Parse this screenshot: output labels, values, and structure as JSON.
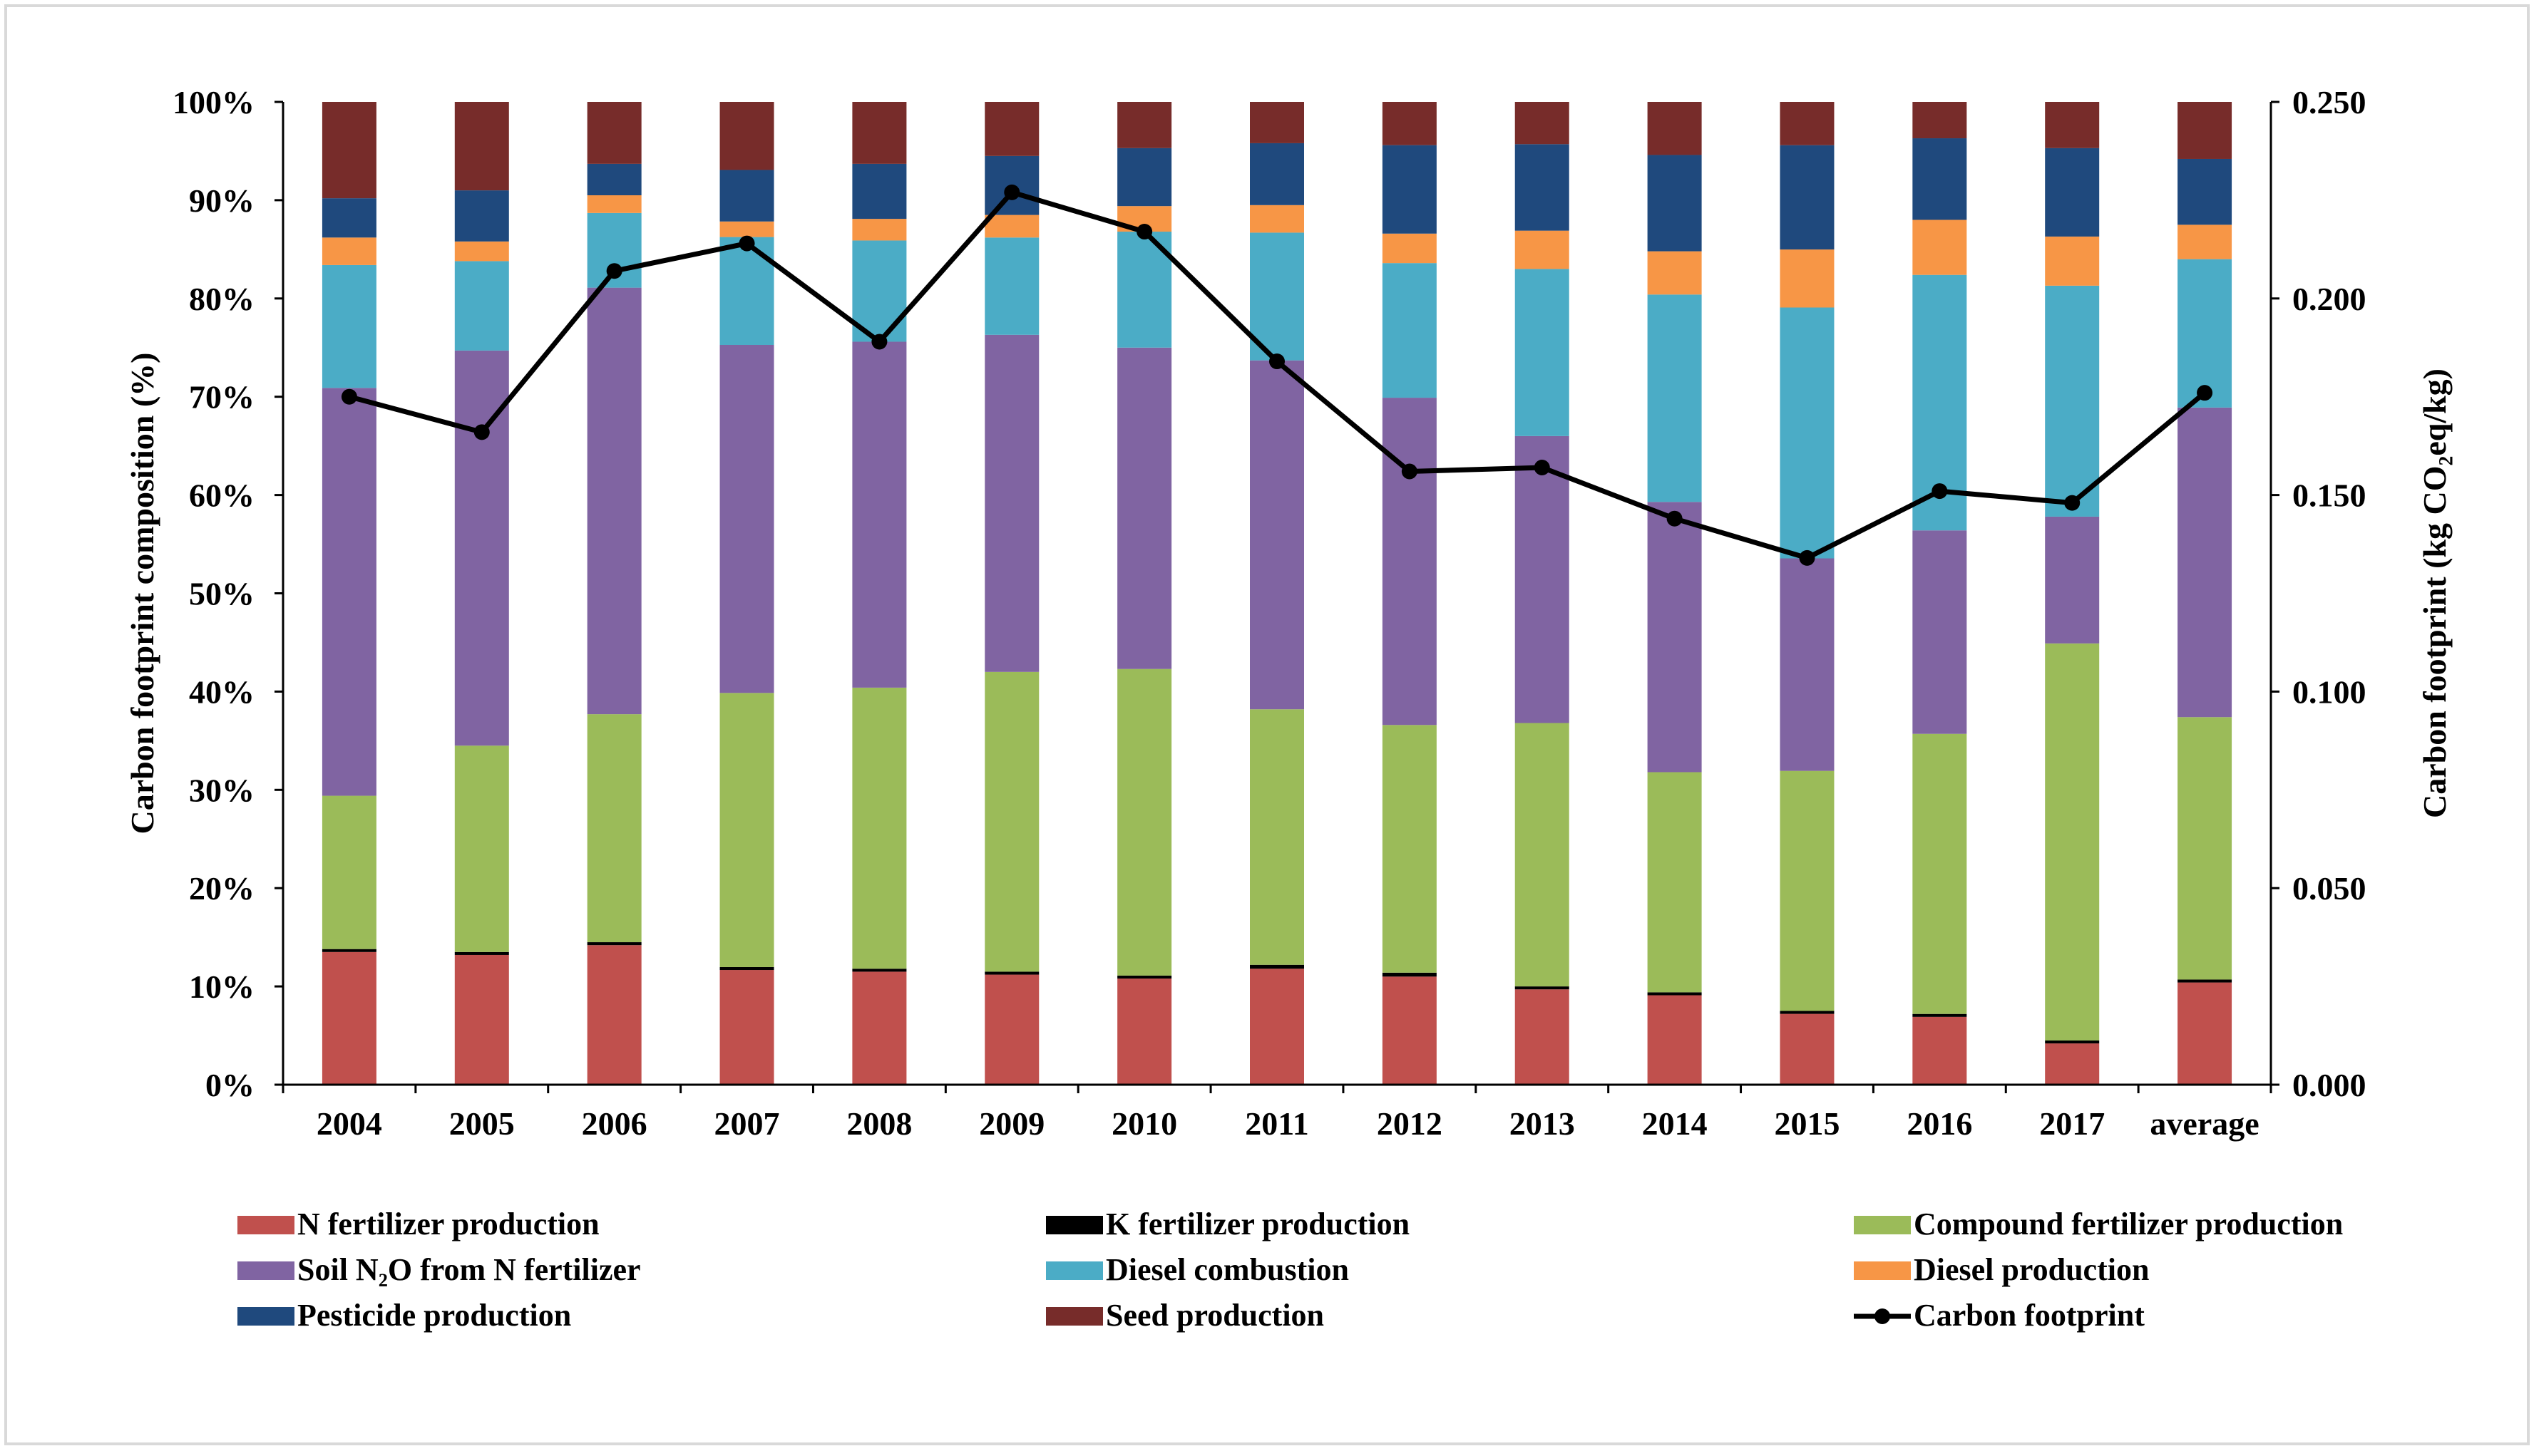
{
  "chart_data": {
    "type": "bar",
    "subtype": "stacked-percent-with-line",
    "categories": [
      "2004",
      "2005",
      "2006",
      "2007",
      "2008",
      "2009",
      "2010",
      "2011",
      "2012",
      "2013",
      "2014",
      "2015",
      "2016",
      "2017",
      "average"
    ],
    "ylabel_left": "Carbon footprint composition (%)",
    "ylabel_right": "Carbon footprint (kg CO₂eq/kg)",
    "ylim_left": [
      0,
      100
    ],
    "ylim_right": [
      0,
      0.25
    ],
    "left_ticks": [
      "0%",
      "10%",
      "20%",
      "30%",
      "40%",
      "50%",
      "60%",
      "70%",
      "80%",
      "90%",
      "100%"
    ],
    "right_ticks": [
      "0.000",
      "0.050",
      "0.100",
      "0.150",
      "0.200",
      "0.250"
    ],
    "grid": false,
    "legend_position": "bottom",
    "series": [
      {
        "name": "N fertilizer production",
        "color": "#C0504D",
        "values": [
          13.5,
          13.2,
          14.2,
          11.8,
          11.5,
          11.2,
          10.8,
          11.8,
          11.0,
          9.7,
          9.1,
          7.2,
          6.9,
          4.2,
          10.4
        ]
      },
      {
        "name": "K fertilizer production",
        "color": "#000000",
        "values": [
          0.3,
          0.3,
          0.3,
          0.3,
          0.3,
          0.3,
          0.3,
          0.4,
          0.4,
          0.3,
          0.3,
          0.3,
          0.3,
          0.3,
          0.3
        ]
      },
      {
        "name": "Compound fertilizer production",
        "color": "#9BBB59",
        "values": [
          15.6,
          21.0,
          23.2,
          28.2,
          28.6,
          30.5,
          31.2,
          26.0,
          25.2,
          26.8,
          22.4,
          24.4,
          28.5,
          40.4,
          26.7
        ]
      },
      {
        "name": "Soil N₂O from  N fertilizer",
        "color": "#8064A2",
        "values": [
          41.5,
          40.2,
          43.4,
          35.8,
          35.2,
          34.3,
          32.7,
          35.5,
          33.3,
          29.2,
          27.5,
          21.6,
          20.7,
          12.9,
          31.5
        ]
      },
      {
        "name": "Diesel combustion",
        "color": "#4BACC6",
        "values": [
          12.5,
          9.1,
          7.6,
          11.1,
          10.3,
          9.9,
          11.8,
          13.0,
          13.7,
          17.0,
          21.1,
          25.5,
          26.0,
          23.5,
          15.1
        ]
      },
      {
        "name": "Diesel production",
        "color": "#F79646",
        "values": [
          2.8,
          2.0,
          1.8,
          1.6,
          2.2,
          2.3,
          2.6,
          2.8,
          3.0,
          3.9,
          4.4,
          5.9,
          5.6,
          5.0,
          3.5
        ]
      },
      {
        "name": "Pesticide production",
        "color": "#1F497D",
        "values": [
          4.0,
          5.2,
          3.2,
          5.3,
          5.6,
          6.0,
          5.9,
          6.3,
          9.0,
          8.8,
          9.8,
          10.6,
          8.3,
          9.0,
          6.7
        ]
      },
      {
        "name": "Seed production",
        "color": "#772C2A",
        "values": [
          9.8,
          9.0,
          6.3,
          7.0,
          6.3,
          5.5,
          4.7,
          4.2,
          4.4,
          4.3,
          5.4,
          4.4,
          3.7,
          4.7,
          5.8
        ]
      }
    ],
    "line": {
      "name": "Carbon footprint",
      "color": "#000000",
      "values": [
        0.175,
        0.166,
        0.207,
        0.214,
        0.189,
        0.227,
        0.217,
        0.184,
        0.156,
        0.157,
        0.144,
        0.134,
        0.151,
        0.148,
        0.176
      ]
    }
  }
}
